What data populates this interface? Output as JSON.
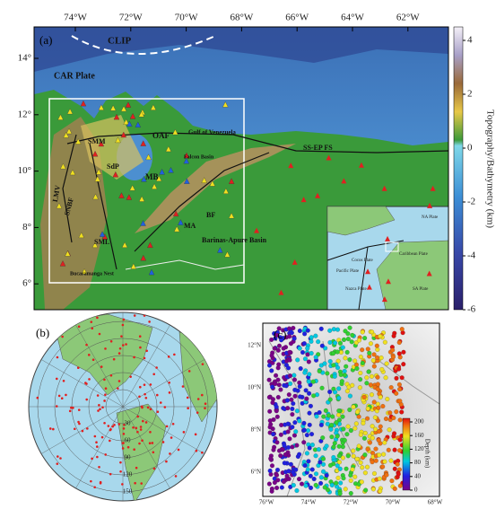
{
  "panel_a": {
    "label": "(a)",
    "lon_ticks": [
      "74°W",
      "72°W",
      "70°W",
      "68°W",
      "66°W",
      "64°W",
      "62°W"
    ],
    "lat_ticks": [
      "14°",
      "12°",
      "10°",
      "8°",
      "6°"
    ],
    "colorbar": {
      "title": "Topography/Bathymetry (km)",
      "ticks": [
        4,
        2,
        0,
        -2,
        -4,
        -6
      ]
    },
    "map_labels": [
      "CLIP",
      "CAR Plate",
      "Gulf of Venezuela",
      "OAF",
      "SMM",
      "SdP",
      "Falcon Basin",
      "MB",
      "SS-EP FS",
      "LMV",
      "SNBF",
      "SML",
      "MA",
      "BF",
      "Barinas-Apure Basin",
      "Bucaramanga Nest"
    ],
    "inset_labels": [
      "NA Plate",
      "Caribbean Plate",
      "Cocos Plate",
      "Pacific Plate",
      "Nazca Plate",
      "SA Plate"
    ]
  },
  "panel_b": {
    "label": "(b)",
    "ring_labels": [
      "30",
      "60",
      "90",
      "120",
      "150"
    ]
  },
  "panel_c": {
    "label": "(c)",
    "lat_ticks": [
      "12°N",
      "10°N",
      "8°N",
      "6°N"
    ],
    "lon_ticks": [
      "76°W",
      "74°W",
      "72°W",
      "70°W",
      "68°W"
    ],
    "colorbar": {
      "title": "Depth (km)",
      "ticks": [
        200,
        160,
        120,
        80,
        40,
        0
      ]
    }
  }
}
